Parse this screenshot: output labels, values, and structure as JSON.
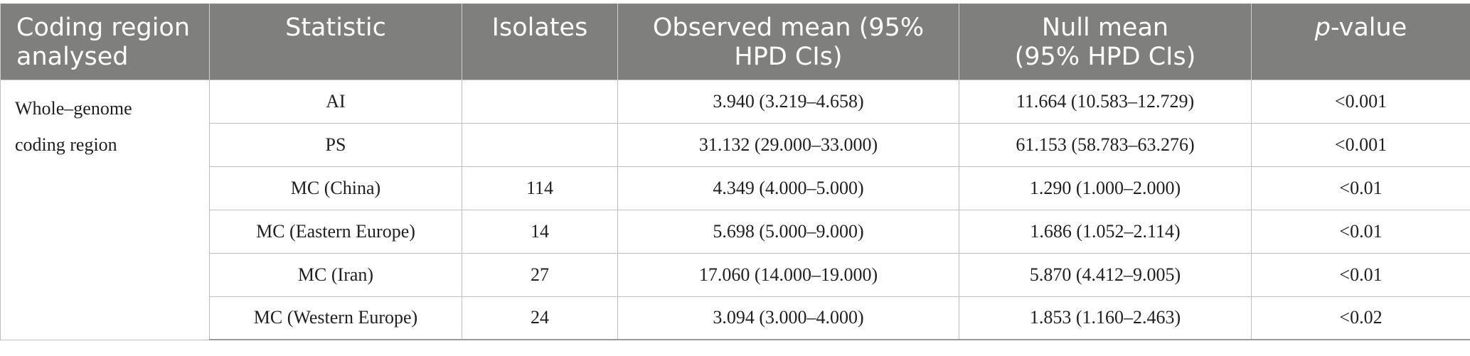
{
  "table": {
    "headers": {
      "region_line1": "Coding region",
      "region_line2": "analysed",
      "statistic": "Statistic",
      "isolates": "Isolates",
      "observed_line1": "Observed mean (95%",
      "observed_line2": "HPD CIs)",
      "null_line1": "Null mean",
      "null_line2": "(95% HPD CIs)",
      "pvalue_italic": "p",
      "pvalue_rest": "-value"
    },
    "region": {
      "line1": "Whole–genome",
      "line2": "coding region"
    },
    "rows": [
      {
        "statistic": "AI",
        "isolates": "",
        "observed": "3.940 (3.219–4.658)",
        "null": "11.664 (10.583–12.729)",
        "p": "<0.001"
      },
      {
        "statistic": "PS",
        "isolates": "",
        "observed": "31.132 (29.000–33.000)",
        "null": "61.153 (58.783–63.276)",
        "p": "<0.001"
      },
      {
        "statistic": "MC (China)",
        "isolates": "114",
        "observed": "4.349 (4.000–5.000)",
        "null": "1.290 (1.000–2.000)",
        "p": "<0.01"
      },
      {
        "statistic": "MC (Eastern Europe)",
        "isolates": "14",
        "observed": "5.698 (5.000–9.000)",
        "null": "1.686 (1.052–2.114)",
        "p": "<0.01"
      },
      {
        "statistic": "MC (Iran)",
        "isolates": "27",
        "observed": "17.060 (14.000–19.000)",
        "null": "5.870 (4.412–9.005)",
        "p": "<0.01"
      },
      {
        "statistic": "MC (Western Europe)",
        "isolates": "24",
        "observed": "3.094 (3.000–4.000)",
        "null": "1.853 (1.160–2.463)",
        "p": "<0.02"
      }
    ]
  }
}
